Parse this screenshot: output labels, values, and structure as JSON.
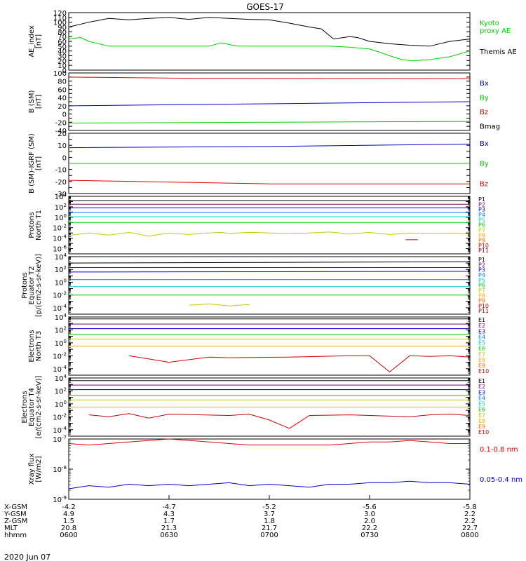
{
  "title": "GOES-17",
  "date_label": "2020 Jun 07",
  "colors": {
    "black": "#000000",
    "red": "#e00000",
    "green": "#00cc00",
    "blue": "#0000cc",
    "P1": "#000000",
    "P2": "#7a007a",
    "P3": "#0000cc",
    "P4": "#0077ff",
    "P5": "#00cccc",
    "P6": "#00cc00",
    "P7": "#c8c800",
    "P8": "#ffaa00",
    "P9": "#ff6600",
    "P10": "#cc0000",
    "P11": "#880000"
  },
  "chart_data": [
    {
      "type": "line",
      "ylabel": "AE_index\n[nT]",
      "ylim": [
        0,
        120
      ],
      "yticks": [
        0,
        10,
        20,
        30,
        40,
        50,
        60,
        70,
        80,
        90,
        100,
        110,
        120
      ],
      "ytick_labels": [
        "0",
        "10",
        "20",
        "30",
        "40",
        "50",
        "60",
        "70",
        "80",
        "90",
        "100",
        "110",
        "120"
      ],
      "series": [
        {
          "name": "Kyoto\nproxy AE",
          "color": "#00cc00",
          "legend_color": "#00cc00",
          "x": [
            0,
            0.03,
            0.05,
            0.1,
            0.2,
            0.3,
            0.35,
            0.38,
            0.42,
            0.5,
            0.6,
            0.65,
            0.7,
            0.75,
            0.78,
            0.8,
            0.83,
            0.85,
            0.87,
            0.9,
            0.95,
            1.0
          ],
          "y": [
            65,
            68,
            60,
            50,
            50,
            50,
            50,
            57,
            50,
            50,
            50,
            50,
            48,
            44,
            36,
            30,
            22,
            20,
            20,
            22,
            28,
            40
          ]
        },
        {
          "name": "Themis AE",
          "color": "#000000",
          "legend_color": "#000000",
          "x": [
            0,
            0.05,
            0.1,
            0.15,
            0.2,
            0.25,
            0.3,
            0.35,
            0.4,
            0.45,
            0.5,
            0.55,
            0.6,
            0.63,
            0.66,
            0.7,
            0.72,
            0.75,
            0.8,
            0.85,
            0.9,
            0.95,
            1.0
          ],
          "y": [
            90,
            100,
            108,
            105,
            108,
            110,
            106,
            110,
            108,
            106,
            105,
            98,
            90,
            86,
            65,
            70,
            68,
            60,
            55,
            52,
            50,
            60,
            65
          ]
        }
      ]
    },
    {
      "type": "line",
      "ylabel": "B (SM)\n[nT]",
      "ylim": [
        -40,
        100
      ],
      "yticks": [
        -40,
        -30,
        -20,
        -10,
        0,
        10,
        20,
        30,
        40,
        50,
        60,
        70,
        80,
        90,
        100
      ],
      "ytick_labels": [
        "-40",
        "-20",
        "0",
        "20",
        "40",
        "60",
        "80",
        "100"
      ],
      "ytick_label_values": [
        -40,
        -20,
        0,
        20,
        40,
        60,
        80,
        100
      ],
      "series": [
        {
          "name": "Bx",
          "color": "#0000cc",
          "x": [
            0,
            1
          ],
          "y": [
            20,
            30
          ]
        },
        {
          "name": "By",
          "color": "#00cc00",
          "x": [
            0,
            1
          ],
          "y": [
            -22,
            -18
          ]
        },
        {
          "name": "Bz",
          "color": "#e00000",
          "x": [
            0,
            0.3,
            1
          ],
          "y": [
            90,
            87,
            86
          ]
        },
        {
          "name": "Bmag",
          "color": "#000000",
          "x": [],
          "y": []
        }
      ]
    },
    {
      "type": "line",
      "ylabel": "B (SM)-IGRF (SM)\n[nT]",
      "ylim": [
        -30,
        20
      ],
      "yticks": [
        -30,
        -25,
        -20,
        -15,
        -10,
        -5,
        0,
        5,
        10,
        15,
        20
      ],
      "ytick_labels": [
        "-30",
        "-20",
        "-10",
        "0",
        "10",
        "20"
      ],
      "ytick_label_values": [
        -30,
        -20,
        -10,
        0,
        10,
        20
      ],
      "series": [
        {
          "name": "Bx",
          "color": "#0000cc",
          "x": [
            0,
            0.5,
            1
          ],
          "y": [
            8,
            9,
            11
          ]
        },
        {
          "name": "By",
          "color": "#00cc00",
          "x": [
            0,
            1
          ],
          "y": [
            -5,
            -5
          ]
        },
        {
          "name": "Bz",
          "color": "#e00000",
          "x": [
            0,
            0.5,
            1
          ],
          "y": [
            -19,
            -22,
            -22
          ]
        }
      ]
    },
    {
      "type": "line",
      "log": true,
      "ylabel": "Protons\nNorth T1",
      "ylim": [
        -7,
        4
      ],
      "ytick_labels": [
        "10^4",
        "10^2",
        "10^0",
        "10^-2",
        "10^-4",
        "10^-6"
      ],
      "ytick_label_values": [
        4,
        2,
        0,
        -2,
        -4,
        -6
      ],
      "legend": [
        "P1",
        "P2",
        "P3",
        "P4",
        "P5",
        "P6",
        "P7",
        "P8",
        "P9",
        "P10",
        "P11"
      ],
      "series": [
        {
          "name": "P1",
          "color": "#000000",
          "y": [
            3.2,
            3.2
          ]
        },
        {
          "name": "P2",
          "color": "#7a007a",
          "y": [
            2.5,
            2.5
          ]
        },
        {
          "name": "P3",
          "color": "#0000cc",
          "y": [
            1.8,
            1.8
          ]
        },
        {
          "name": "P4",
          "color": "#0077ff",
          "y": [
            0.9,
            0.9
          ]
        },
        {
          "name": "P5",
          "color": "#00cccc",
          "y": [
            0.1,
            0.1
          ]
        },
        {
          "name": "P6",
          "color": "#00cc00",
          "y": [
            -1.0,
            -1.0
          ]
        },
        {
          "name": "P7",
          "color": "#c8c800",
          "x": [
            0,
            0.05,
            0.1,
            0.15,
            0.2,
            0.25,
            0.3,
            0.35,
            0.38,
            0.4,
            0.45,
            0.5,
            0.55,
            0.6,
            0.65,
            0.7,
            0.75,
            0.8,
            0.85,
            0.9,
            0.95,
            1.0
          ],
          "y": [
            -3.5,
            -3.0,
            -3.4,
            -2.9,
            -3.6,
            -3.0,
            -3.3,
            -3.0,
            -2.9,
            -3.1,
            -2.9,
            -3.0,
            -3.1,
            -3.0,
            -2.8,
            -3.2,
            -2.9,
            -3.3,
            -3.0,
            -3.1,
            -3.0,
            -3.2
          ]
        },
        {
          "name": "P10",
          "color": "#cc0000",
          "x": [
            0.84,
            0.87
          ],
          "y": [
            -4.3,
            -4.3
          ]
        }
      ]
    },
    {
      "type": "line",
      "log": true,
      "ylabel": "Protons\nEquator T2\n[p/(cm2-s-sr-keV)]",
      "ylim": [
        -5,
        4
      ],
      "ytick_labels": [
        "10^4",
        "10^2",
        "10^0",
        "10^-2",
        "10^-4"
      ],
      "ytick_label_values": [
        4,
        2,
        0,
        -2,
        -4
      ],
      "legend": [
        "P1",
        "P2",
        "P3",
        "P4",
        "P5",
        "P6",
        "P7",
        "P8",
        "P9",
        "P10",
        "P11"
      ],
      "series": [
        {
          "name": "P1",
          "color": "#000000",
          "y": [
            3.0,
            3.2
          ]
        },
        {
          "name": "P2",
          "color": "#7a007a",
          "y": [
            2.3,
            2.3
          ]
        },
        {
          "name": "P3",
          "color": "#0000cc",
          "y": [
            1.6,
            1.7
          ]
        },
        {
          "name": "P4",
          "color": "#0077ff",
          "y": [
            0.4,
            0.4
          ]
        },
        {
          "name": "P5",
          "color": "#00cccc",
          "y": [
            -0.7,
            -0.7
          ]
        },
        {
          "name": "P6",
          "color": "#00cc00",
          "y": [
            -2.0,
            -2.0
          ]
        },
        {
          "name": "P7",
          "color": "#c8c800",
          "x": [
            0.3,
            0.35,
            0.4,
            0.45
          ],
          "y": [
            -3.6,
            -3.4,
            -3.7,
            -3.5
          ]
        }
      ]
    },
    {
      "type": "line",
      "log": true,
      "ylabel": "Electrons\nNorth T3",
      "ylim": [
        -5,
        4
      ],
      "ytick_labels": [
        "10^4",
        "10^2",
        "10^0",
        "10^-2",
        "10^-4"
      ],
      "ytick_label_values": [
        4,
        2,
        0,
        -2,
        -4
      ],
      "legend": [
        "E1",
        "E2",
        "E3",
        "E4",
        "E5",
        "E6",
        "E7",
        "E8",
        "E9",
        "E10"
      ],
      "series": [
        {
          "name": "E1",
          "color": "#000000",
          "y": [
            3.7,
            3.7
          ]
        },
        {
          "name": "E2",
          "color": "#7a007a",
          "y": [
            2.9,
            2.9
          ]
        },
        {
          "name": "E3",
          "color": "#0000cc",
          "y": [
            2.2,
            2.2
          ]
        },
        {
          "name": "E4",
          "color": "#00cc00",
          "y": [
            1.3,
            1.3
          ]
        },
        {
          "name": "E5",
          "color": "#c8c800",
          "y": [
            0.6,
            0.6
          ]
        },
        {
          "name": "E6",
          "color": "#ffaa00",
          "y": [
            -0.5,
            -0.5
          ]
        },
        {
          "name": "E7",
          "color": "#cc0000",
          "x": [
            0.15,
            0.2,
            0.25,
            0.35,
            0.4,
            0.55,
            0.7,
            0.75,
            0.8,
            0.85,
            0.9,
            0.95,
            1.0
          ],
          "y": [
            -2.0,
            -2.5,
            -3.0,
            -2.2,
            -2.3,
            -2.2,
            -2.0,
            -2.0,
            -4.5,
            -2.0,
            -2.1,
            -2.0,
            -2.2
          ]
        }
      ]
    },
    {
      "type": "line",
      "log": true,
      "ylabel": "Electrons\nEquator T4\n[e/(cm2-s-sr-keV)]",
      "ylim": [
        -5,
        4
      ],
      "ytick_labels": [
        "10^4",
        "10^2",
        "10^0",
        "10^-2",
        "10^-4"
      ],
      "ytick_label_values": [
        4,
        2,
        0,
        -2,
        -4
      ],
      "legend": [
        "E1",
        "E2",
        "E3",
        "E4",
        "E5",
        "E6",
        "E7",
        "E8",
        "E9",
        "E10"
      ],
      "series": [
        {
          "name": "E1",
          "color": "#000000",
          "y": [
            3.6,
            3.6
          ]
        },
        {
          "name": "E2",
          "color": "#7a007a",
          "y": [
            2.9,
            2.9
          ]
        },
        {
          "name": "E3",
          "color": "#0000cc",
          "y": [
            2.2,
            2.2
          ]
        },
        {
          "name": "E4",
          "color": "#00cc00",
          "y": [
            1.3,
            1.3
          ]
        },
        {
          "name": "E5",
          "color": "#c8c800",
          "y": [
            0.6,
            0.6
          ]
        },
        {
          "name": "E6",
          "color": "#ffaa00",
          "y": [
            -0.5,
            -0.5
          ]
        },
        {
          "name": "E7",
          "color": "#cc0000",
          "x": [
            0.05,
            0.1,
            0.15,
            0.2,
            0.25,
            0.4,
            0.45,
            0.5,
            0.55,
            0.6,
            0.7,
            0.8,
            0.85,
            0.9,
            0.95,
            1.0
          ],
          "y": [
            -1.7,
            -2.0,
            -1.5,
            -2.2,
            -1.6,
            -1.8,
            -1.6,
            -2.5,
            -3.8,
            -1.8,
            -1.7,
            -1.9,
            -2.0,
            -1.7,
            -1.6,
            -1.8
          ]
        }
      ]
    },
    {
      "type": "line",
      "log": true,
      "ylabel": "Xray flux\n[W/m2]",
      "ylim": [
        -9,
        -7
      ],
      "ytick_labels": [
        "10^-7",
        "10^-8",
        "10^-9"
      ],
      "ytick_label_values": [
        -7,
        -8,
        -9
      ],
      "series": [
        {
          "name": "0.1-0.8 nm",
          "color": "#e00000",
          "x": [
            0,
            0.05,
            0.1,
            0.15,
            0.2,
            0.25,
            0.3,
            0.35,
            0.4,
            0.45,
            0.5,
            0.55,
            0.6,
            0.65,
            0.7,
            0.75,
            0.8,
            0.85,
            0.9,
            0.95,
            1.0
          ],
          "y": [
            -7.15,
            -7.2,
            -7.15,
            -7.1,
            -7.05,
            -7.0,
            -7.05,
            -7.1,
            -7.15,
            -7.2,
            -7.2,
            -7.2,
            -7.2,
            -7.2,
            -7.15,
            -7.1,
            -7.1,
            -7.05,
            -7.1,
            -7.15,
            -7.15
          ]
        },
        {
          "name": "0.05-0.4 nm",
          "color": "#0000cc",
          "x": [
            0,
            0.05,
            0.1,
            0.15,
            0.2,
            0.25,
            0.3,
            0.35,
            0.4,
            0.45,
            0.5,
            0.55,
            0.6,
            0.65,
            0.7,
            0.75,
            0.8,
            0.85,
            0.9,
            0.95,
            1.0
          ],
          "y": [
            -8.65,
            -8.55,
            -8.6,
            -8.5,
            -8.55,
            -8.5,
            -8.55,
            -8.5,
            -8.45,
            -8.55,
            -8.5,
            -8.55,
            -8.6,
            -8.5,
            -8.5,
            -8.45,
            -8.45,
            -8.4,
            -8.45,
            -8.45,
            -8.5
          ]
        }
      ]
    }
  ],
  "time_axis": {
    "ticks": [
      0,
      0.25,
      0.5,
      0.75,
      1.0
    ],
    "rows": [
      {
        "label": "X-GSM",
        "values": [
          "-4.2",
          "-4.7",
          "-5.2",
          "-5.6",
          "-5.8"
        ]
      },
      {
        "label": "Y-GSM",
        "values": [
          "4.9",
          "4.3",
          "3.7",
          "3.0",
          "2.2"
        ]
      },
      {
        "label": "Z-GSM",
        "values": [
          "1.5",
          "1.7",
          "1.8",
          "2.0",
          "2.2"
        ]
      },
      {
        "label": "MLT",
        "values": [
          "20.8",
          "21.3",
          "21.7",
          "22.2",
          "22.7"
        ]
      },
      {
        "label": "hhmm",
        "values": [
          "0600",
          "0630",
          "0700",
          "0730",
          "0800"
        ]
      }
    ]
  }
}
